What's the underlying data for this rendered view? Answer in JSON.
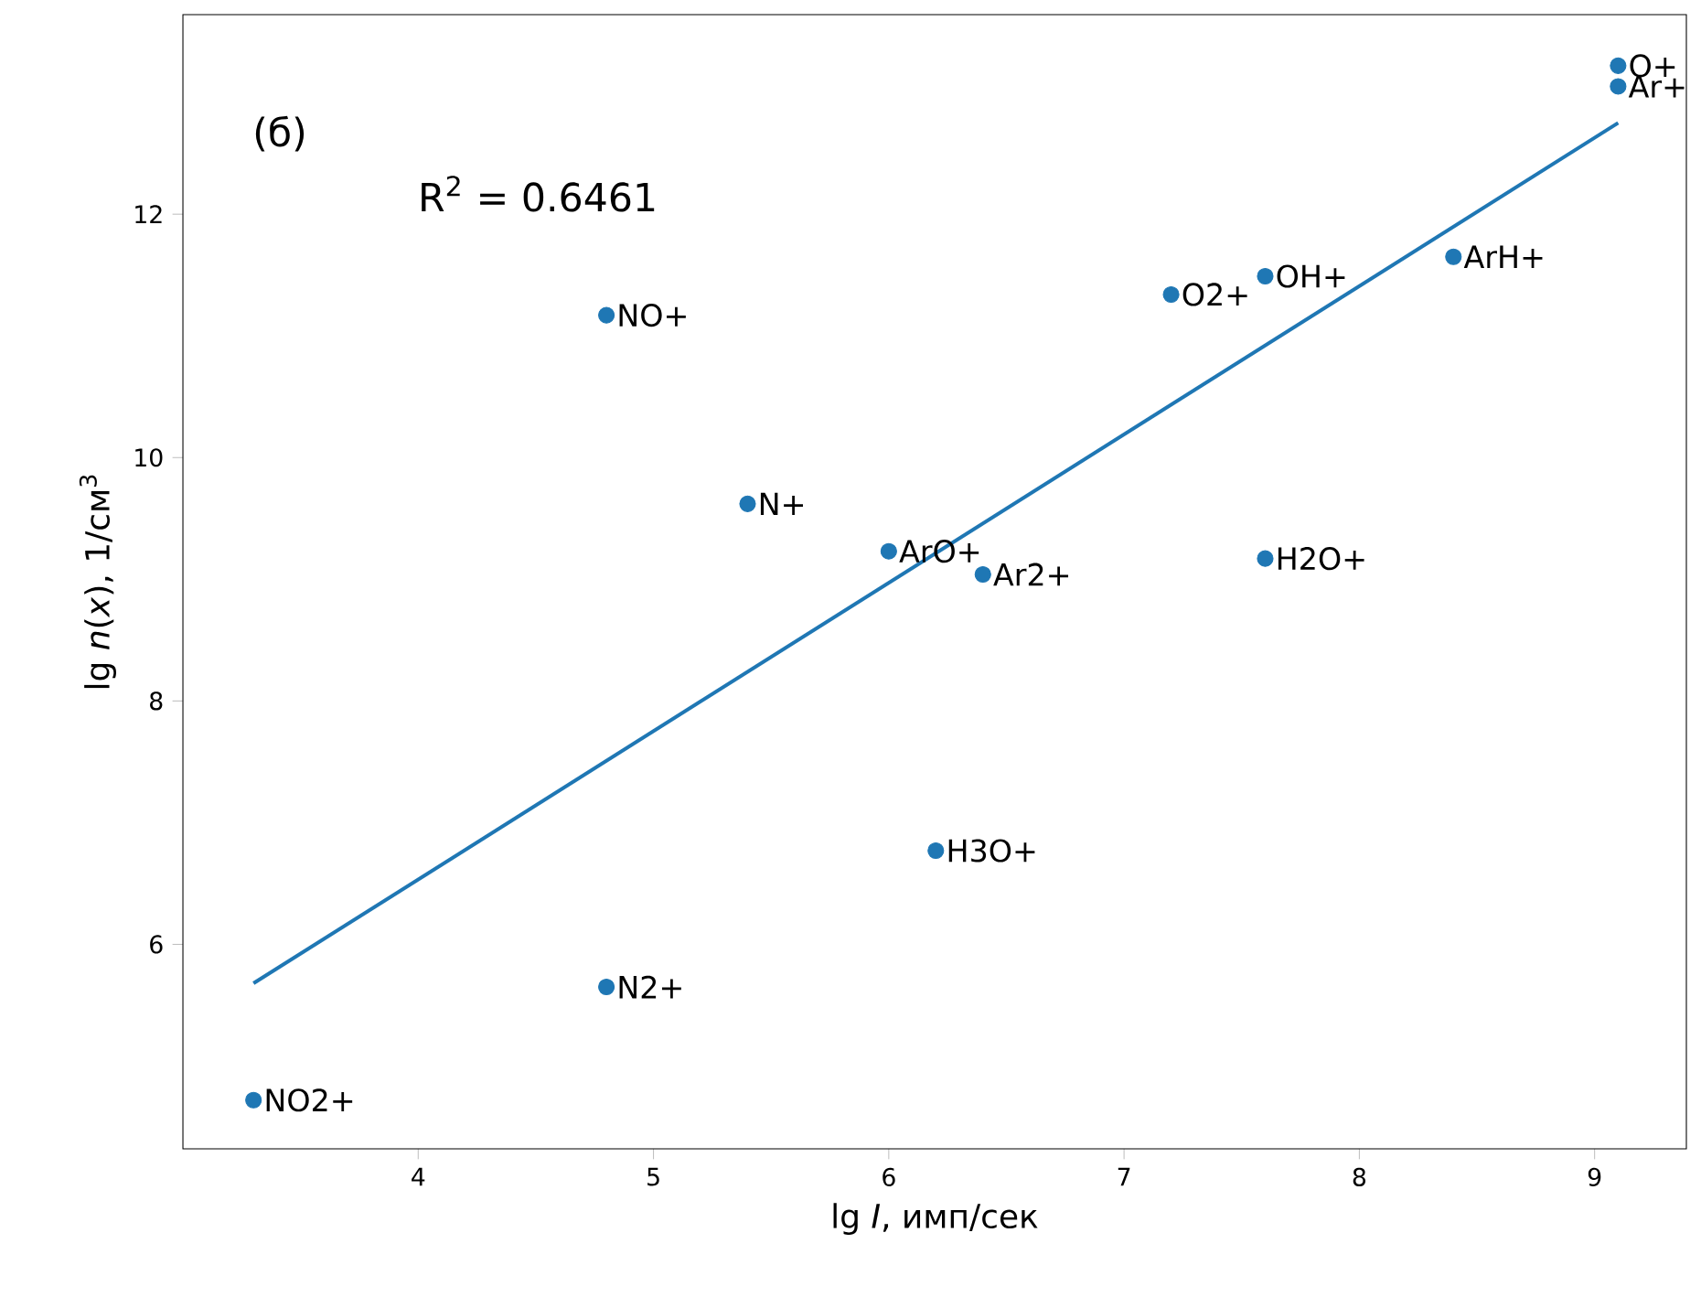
{
  "chart_data": {
    "type": "scatter",
    "xlabel": "lg *I*, имп/сек",
    "ylabel": "lg *n*(*x*), 1/см$^{3}$",
    "x": [
      3.3,
      4.8,
      4.8,
      5.4,
      6.0,
      6.4,
      6.2,
      7.2,
      7.6,
      7.6,
      8.4,
      9.1,
      9.1
    ],
    "series": [
      {
        "color": "#1f77b4",
        "marker": "circle",
        "values": [
          4.72,
          5.65,
          11.17,
          9.62,
          9.23,
          9.04,
          6.77,
          11.34,
          11.49,
          9.17,
          11.65,
          13.22,
          13.05
        ]
      },
      {
        "type": "line",
        "color": "#1f77b4",
        "x": [
          3.3,
          9.1
        ],
        "values": [
          5.68,
          12.75
        ]
      }
    ],
    "xlim": [
      3.0,
      9.39
    ],
    "ylim": [
      4.32,
      13.64
    ],
    "xticks": [
      4,
      5,
      6,
      7,
      8,
      9
    ],
    "yticks": [
      6,
      8,
      10,
      12
    ],
    "annotations": [
      "(б)",
      "R$^{2}$ = 0.6461",
      {
        "text": "NO2+",
        "x": 3.3,
        "y": 4.72
      },
      {
        "text": "N2+",
        "x": 4.8,
        "y": 5.65
      },
      {
        "text": "NO+",
        "x": 4.8,
        "y": 11.17
      },
      {
        "text": "N+",
        "x": 5.4,
        "y": 9.62
      },
      {
        "text": "ArO+",
        "x": 6.0,
        "y": 9.23
      },
      {
        "text": "Ar2+",
        "x": 6.4,
        "y": 9.04
      },
      {
        "text": "H3O+",
        "x": 6.2,
        "y": 6.77
      },
      {
        "text": "O2+",
        "x": 7.2,
        "y": 11.34
      },
      {
        "text": "OH+",
        "x": 7.6,
        "y": 11.49
      },
      {
        "text": "H2O+",
        "x": 7.6,
        "y": 9.17
      },
      {
        "text": "ArH+",
        "x": 8.4,
        "y": 11.65
      },
      {
        "text": "O+",
        "x": 9.1,
        "y": 13.22
      },
      {
        "text": "Ar+",
        "x": 9.1,
        "y": 13.05
      }
    ]
  }
}
